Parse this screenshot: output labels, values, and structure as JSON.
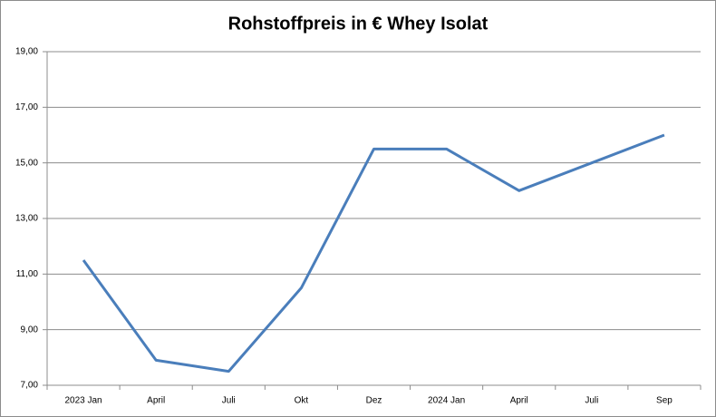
{
  "chart_data": {
    "type": "line",
    "title": "Rohstoffpreis in €   Whey Isolat",
    "categories": [
      "2023 Jan",
      "April",
      "Juli",
      "Okt",
      "Dez",
      "2024 Jan",
      "April",
      "Juli",
      "Sep"
    ],
    "values": [
      11.5,
      7.9,
      7.5,
      10.5,
      15.5,
      15.5,
      14.0,
      15.0,
      16.0
    ],
    "color": "#4a7ebb",
    "ylim": [
      7,
      19
    ],
    "yticks": [
      {
        "value": 7,
        "label": "7,00"
      },
      {
        "value": 9,
        "label": "9,00"
      },
      {
        "value": 11,
        "label": "11,00"
      },
      {
        "value": 13,
        "label": "13,00"
      },
      {
        "value": 15,
        "label": "15,00"
      },
      {
        "value": 17,
        "label": "17,00"
      },
      {
        "value": 19,
        "label": "19,00"
      }
    ],
    "grid": true
  }
}
